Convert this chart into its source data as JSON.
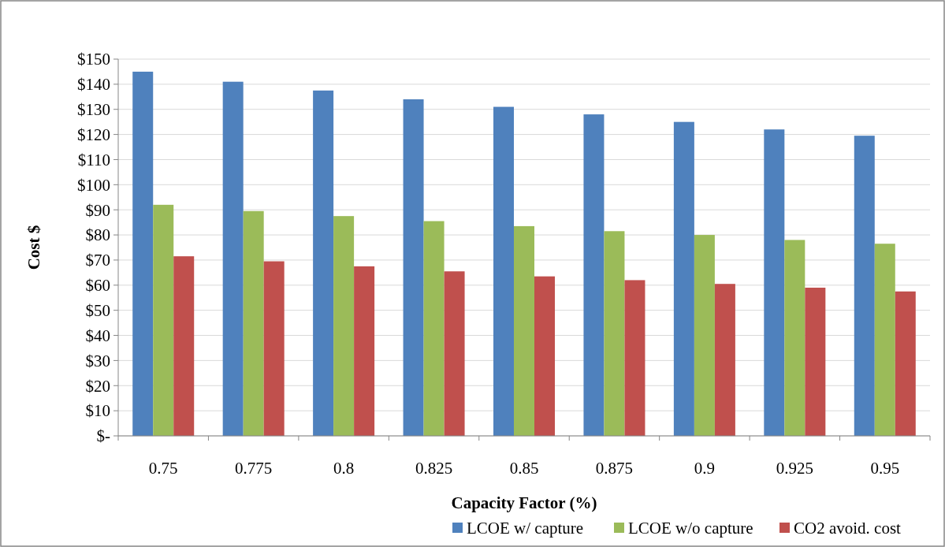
{
  "chart_data": {
    "type": "bar",
    "xlabel": "Capacity Factor (%)",
    "ylabel": "Cost $",
    "categories": [
      "0.75",
      "0.775",
      "0.8",
      "0.825",
      "0.85",
      "0.875",
      "0.9",
      "0.925",
      "0.95"
    ],
    "series": [
      {
        "name": "LCOE w/ capture",
        "color": "#4f81bd",
        "values": [
          145,
          141,
          137.5,
          134,
          131,
          128,
          125,
          122,
          119.5
        ]
      },
      {
        "name": "LCOE w/o capture",
        "color": "#9bbb59",
        "values": [
          92,
          89.5,
          87.5,
          85.5,
          83.5,
          81.5,
          80,
          78,
          76.5
        ]
      },
      {
        "name": "CO2 avoid. cost",
        "color": "#c0504d",
        "values": [
          71.5,
          69.5,
          67.5,
          65.5,
          63.5,
          62,
          60.5,
          59,
          57.5
        ]
      }
    ],
    "ylim": [
      0,
      150
    ],
    "yticks": [
      {
        "value": 0,
        "label": "$-"
      },
      {
        "value": 10,
        "label": "$10"
      },
      {
        "value": 20,
        "label": "$20"
      },
      {
        "value": 30,
        "label": "$30"
      },
      {
        "value": 40,
        "label": "$40"
      },
      {
        "value": 50,
        "label": "$50"
      },
      {
        "value": 60,
        "label": "$60"
      },
      {
        "value": 70,
        "label": "$70"
      },
      {
        "value": 80,
        "label": "$80"
      },
      {
        "value": 90,
        "label": "$90"
      },
      {
        "value": 100,
        "label": "$100"
      },
      {
        "value": 110,
        "label": "$110"
      },
      {
        "value": 120,
        "label": "$120"
      },
      {
        "value": 130,
        "label": "$130"
      },
      {
        "value": 140,
        "label": "$140"
      },
      {
        "value": 150,
        "label": "$150"
      }
    ],
    "grid": "y",
    "legend": "bottom right"
  }
}
